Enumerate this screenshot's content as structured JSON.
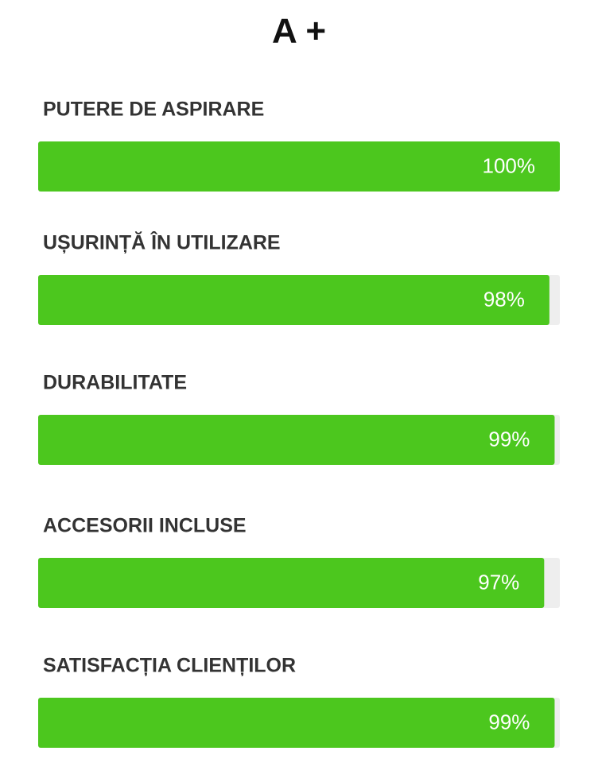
{
  "chart_data": {
    "type": "progress",
    "title": "A +",
    "categories": [
      "PUTERE DE ASPIRARE",
      "UȘURINȚĂ ÎN UTILIZARE",
      "DURABILITATE",
      "ACCESORII INCLUSE",
      "SATISFACȚIA CLIENȚILOR"
    ],
    "values": [
      100,
      98,
      99,
      97,
      99
    ],
    "value_labels": [
      "100%",
      "98%",
      "99%",
      "97%",
      "99%"
    ],
    "xlim": [
      0,
      100
    ],
    "color": "#4cc71e"
  }
}
